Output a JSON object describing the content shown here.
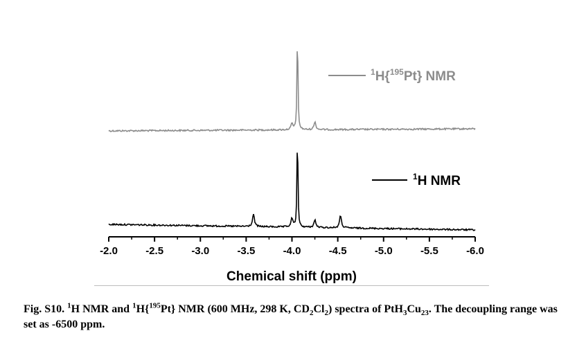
{
  "chart_data": {
    "type": "line",
    "title": "",
    "xlabel": "Chemical shift (ppm)",
    "ylabel": "",
    "xlim": [
      -2.0,
      -6.0
    ],
    "x_reversed": true,
    "y_axis_visible": false,
    "grid": false,
    "legend_placement": "inline-right",
    "x_ticks": [
      "-2.0",
      "-2.5",
      "-3.0",
      "-3.5",
      "-4.0",
      "-4.5",
      "-5.0",
      "-5.5",
      "-6.0"
    ],
    "series": [
      {
        "name": "1H{195Pt} NMR",
        "color": "#8c8c8c",
        "peaks": [
          {
            "shift": -4.06,
            "intensity": 1.0
          },
          {
            "shift": -4.0,
            "intensity": 0.06
          },
          {
            "shift": -4.25,
            "intensity": 0.08
          }
        ]
      },
      {
        "name": "1H NMR",
        "color": "#000000",
        "peaks": [
          {
            "shift": -4.06,
            "intensity": 1.0
          },
          {
            "shift": -3.58,
            "intensity": 0.13
          },
          {
            "shift": -4.0,
            "intensity": 0.09
          },
          {
            "shift": -4.25,
            "intensity": 0.08
          },
          {
            "shift": -4.53,
            "intensity": 0.13
          }
        ]
      }
    ]
  },
  "legend": {
    "gray": {
      "sup1": "1",
      "part1": "H{",
      "sup2": "195",
      "part2": "Pt} NMR"
    },
    "black": {
      "sup1": "1",
      "part1": "H NMR"
    }
  },
  "caption": {
    "fig": "Fig. S10.",
    "s1": "1",
    "t1": "H NMR and",
    "s2": "1",
    "t2": "H{",
    "s3": "195",
    "t3": "Pt} NMR (600 MHz, 298 K, CD",
    "sub1": "2",
    "t4": "Cl",
    "sub2": "2",
    "t5": ") spectra of PtH",
    "sub3": "3",
    "t6": "Cu",
    "sub4": "23",
    "t7": ". The decoupling range was set as -6500 ppm."
  }
}
